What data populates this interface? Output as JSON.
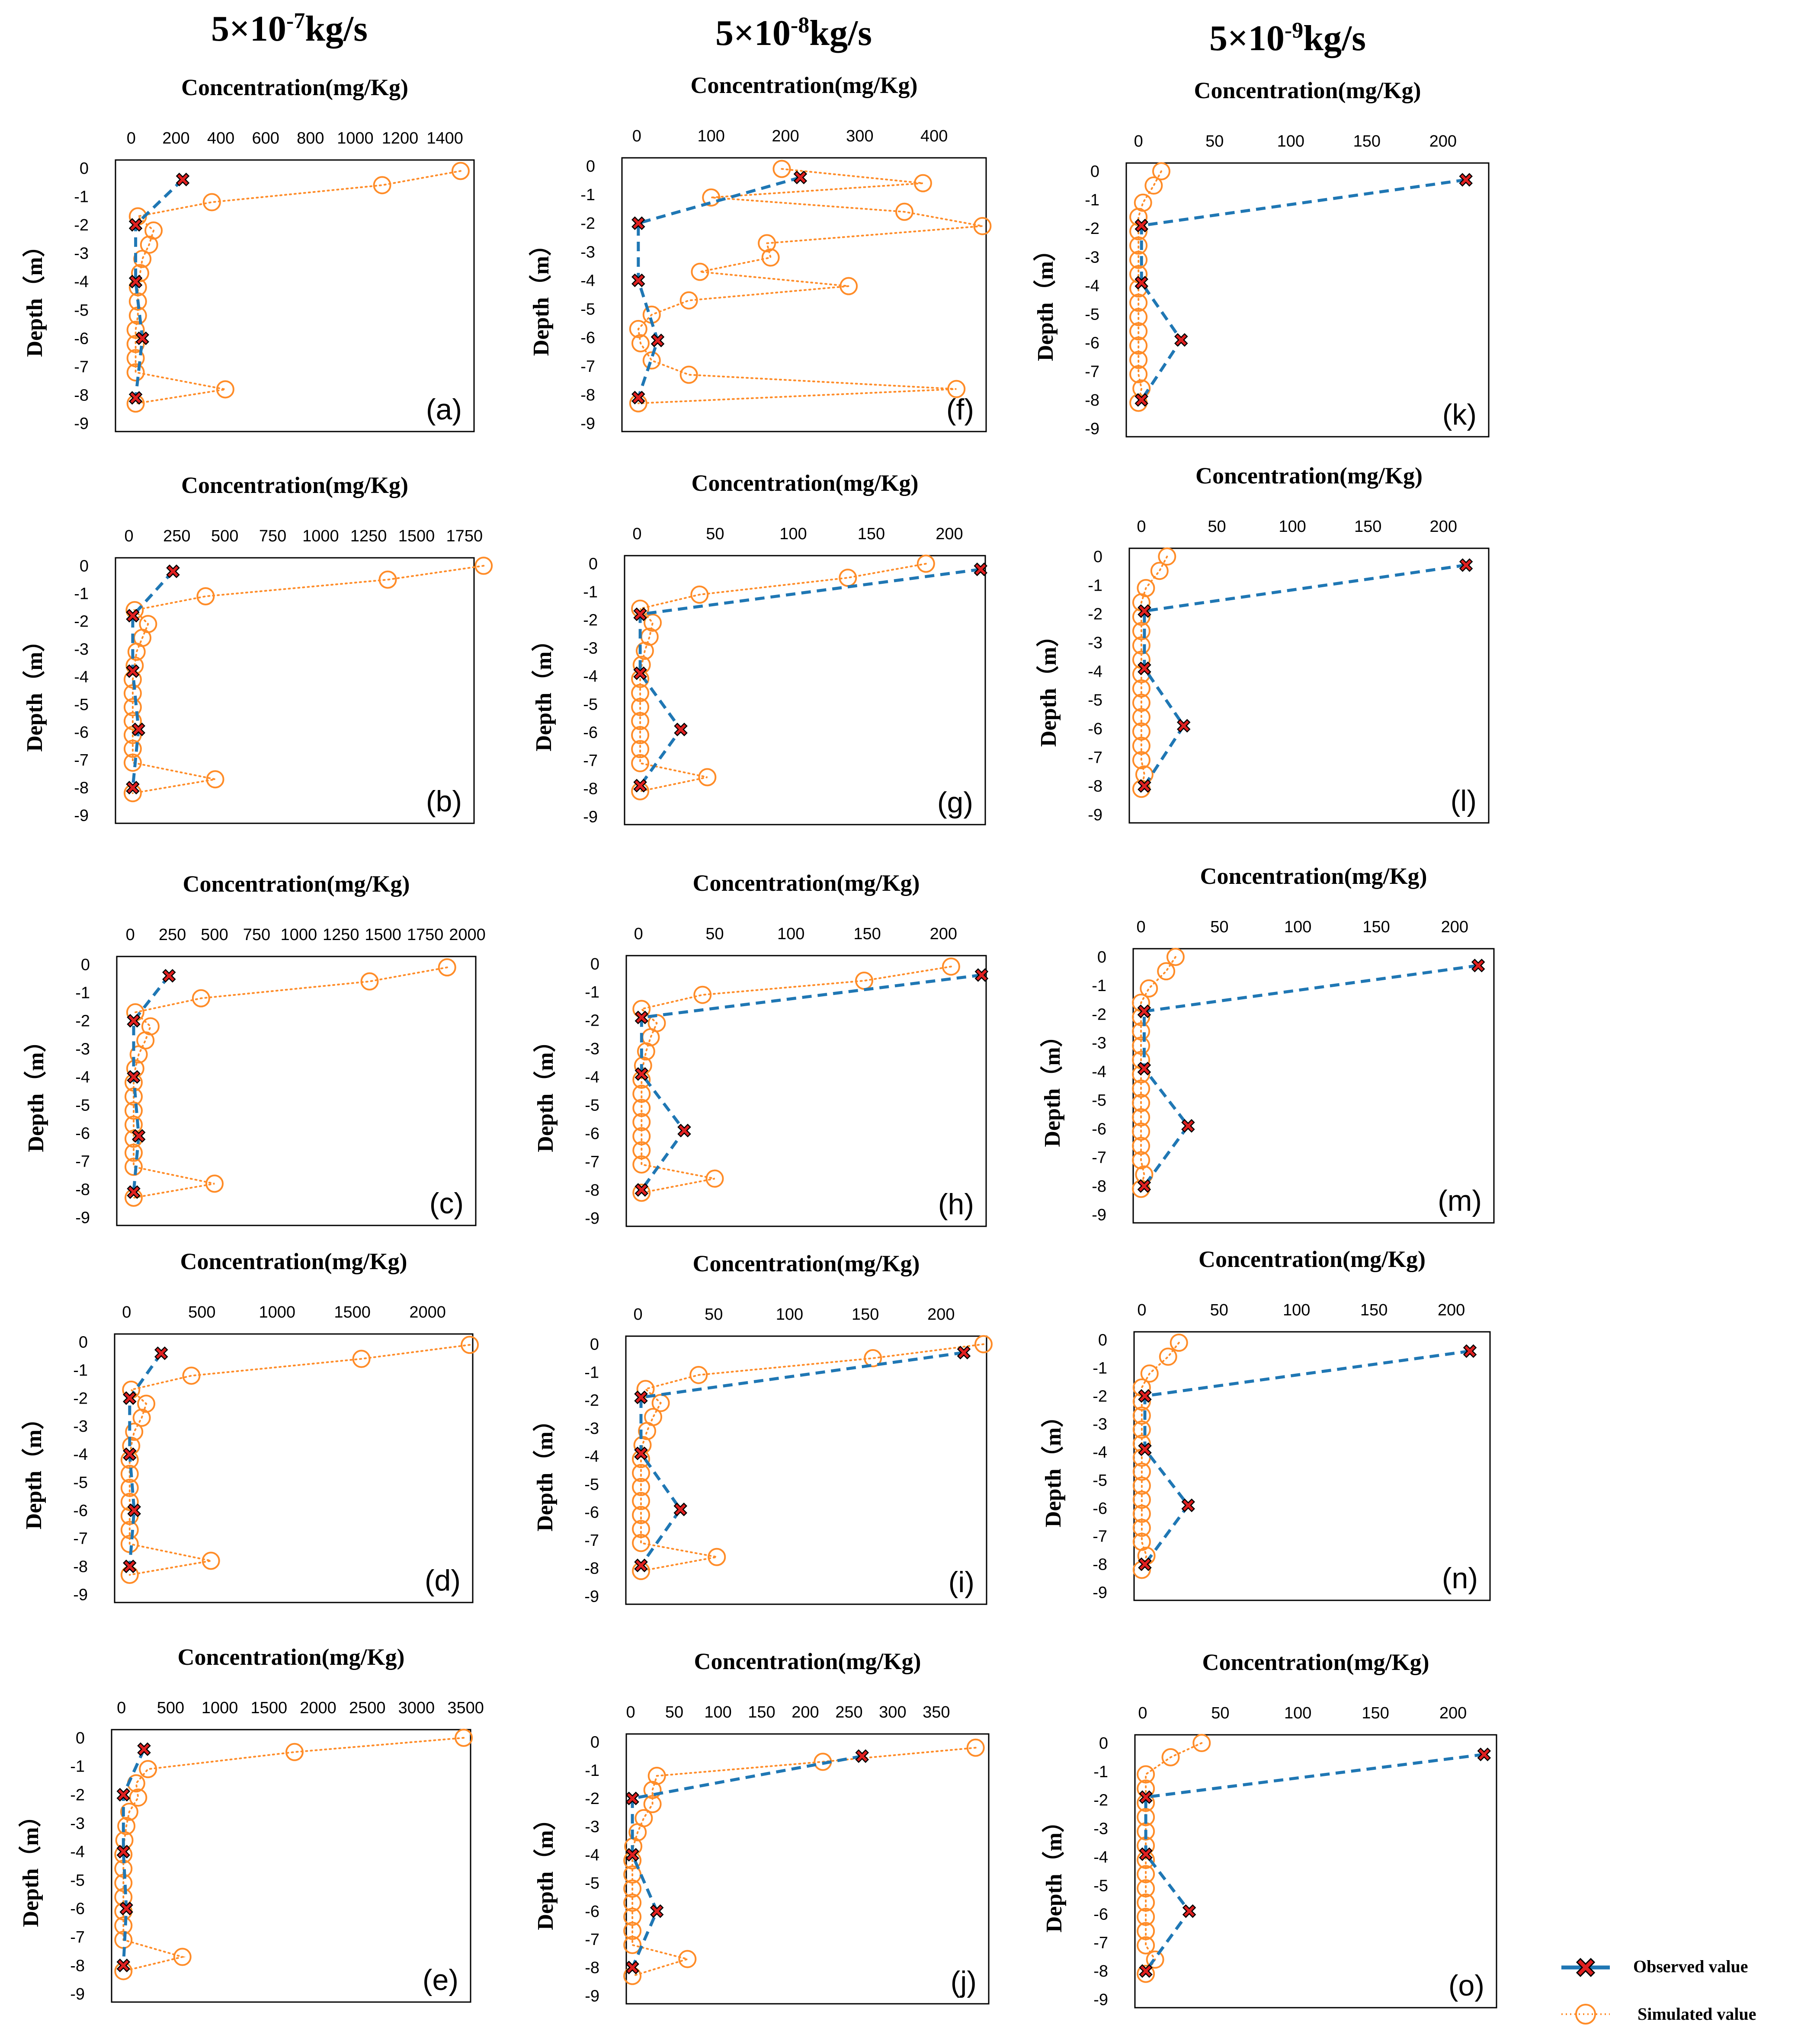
{
  "column_titles": [
    {
      "base": "5×10",
      "exp": "-7",
      "unit": "kg/s"
    },
    {
      "base": "5×10",
      "exp": "-8",
      "unit": "kg/s"
    },
    {
      "base": "5×10",
      "exp": "-9",
      "unit": "kg/s"
    }
  ],
  "legend": {
    "observed": "Observed value",
    "simulated": "Simulated value"
  },
  "colors": {
    "observed_line": "#1f77b4",
    "observed_marker": "#e02020",
    "simulated": "#ff8c28"
  },
  "chart_data": [
    {
      "type": "line",
      "panel_label": "(a)",
      "title": "Concentration(mg/Kg)",
      "ylabel": "Depth（m）",
      "xlim": [
        -70,
        1530
      ],
      "xticks": [
        0,
        200,
        400,
        600,
        800,
        1000,
        1200,
        1400
      ],
      "ylim": [
        -9,
        0
      ],
      "yticks": [
        0,
        -1,
        -2,
        -3,
        -4,
        -5,
        -6,
        -7,
        -8,
        -9
      ],
      "observed": {
        "depth": [
          -0.4,
          -2,
          -4,
          -6,
          -8.1
        ],
        "conc": [
          230,
          20,
          20,
          50,
          20
        ]
      },
      "simulated": {
        "depth": [
          -0.1,
          -0.6,
          -1.2,
          -1.7,
          -2.2,
          -2.7,
          -3.2,
          -3.7,
          -4.2,
          -4.7,
          -5.2,
          -5.7,
          -6.2,
          -6.7,
          -7.2,
          -7.8,
          -8.3
        ],
        "conc": [
          1470,
          1120,
          360,
          30,
          100,
          80,
          50,
          40,
          30,
          30,
          30,
          20,
          20,
          20,
          20,
          420,
          20
        ]
      }
    },
    {
      "type": "line",
      "panel_label": "(b)",
      "title": "Concentration(mg/Kg)",
      "ylabel": "Depth（m）",
      "xlim": [
        -70,
        1800
      ],
      "xticks": [
        0,
        250,
        500,
        750,
        1000,
        1250,
        1500,
        1750
      ],
      "ylim": [
        -9,
        0
      ],
      "yticks": [
        0,
        -1,
        -2,
        -3,
        -4,
        -5,
        -6,
        -7,
        -8,
        -9
      ],
      "observed": {
        "depth": [
          -0.2,
          -1.8,
          -3.8,
          -5.9,
          -8.0
        ],
        "conc": [
          230,
          20,
          20,
          50,
          20
        ]
      },
      "simulated": {
        "depth": [
          0,
          -0.5,
          -1.1,
          -1.6,
          -2.1,
          -2.6,
          -3.1,
          -3.6,
          -4.1,
          -4.6,
          -5.1,
          -5.6,
          -6.1,
          -6.6,
          -7.1,
          -7.7,
          -8.2
        ],
        "conc": [
          1850,
          1350,
          400,
          30,
          100,
          70,
          40,
          30,
          20,
          20,
          20,
          20,
          20,
          20,
          20,
          450,
          20
        ]
      }
    },
    {
      "type": "line",
      "panel_label": "(c)",
      "title": "Concentration(mg/Kg)",
      "ylabel": "Depth（m）",
      "xlim": [
        -80,
        2050
      ],
      "xticks": [
        0,
        250,
        500,
        750,
        1000,
        1250,
        1500,
        1750,
        2000
      ],
      "ylim": [
        -9,
        0
      ],
      "yticks": [
        0,
        -1,
        -2,
        -3,
        -4,
        -5,
        -6,
        -7,
        -8,
        -9
      ],
      "observed": {
        "depth": [
          -0.4,
          -2,
          -4,
          -6.1,
          -8.1
        ],
        "conc": [
          230,
          20,
          20,
          50,
          20
        ]
      },
      "simulated": {
        "depth": [
          -0.1,
          -0.6,
          -1.2,
          -1.7,
          -2.2,
          -2.7,
          -3.2,
          -3.7,
          -4.2,
          -4.7,
          -5.2,
          -5.7,
          -6.2,
          -6.7,
          -7.2,
          -7.8,
          -8.3
        ],
        "conc": [
          1880,
          1420,
          420,
          30,
          120,
          90,
          50,
          30,
          20,
          20,
          20,
          20,
          20,
          20,
          20,
          500,
          20
        ]
      }
    },
    {
      "type": "line",
      "panel_label": "(d)",
      "title": "Concentration(mg/Kg)",
      "ylabel": "Depth（m）",
      "xlim": [
        -80,
        2300
      ],
      "xticks": [
        0,
        500,
        1000,
        1500,
        2000
      ],
      "ylim": [
        -9,
        0
      ],
      "yticks": [
        0,
        -1,
        -2,
        -3,
        -4,
        -5,
        -6,
        -7,
        -8,
        -9
      ],
      "observed": {
        "depth": [
          -0.4,
          -2,
          -4,
          -6,
          -8
        ],
        "conc": [
          230,
          20,
          20,
          50,
          20
        ]
      },
      "simulated": {
        "depth": [
          -0.1,
          -0.6,
          -1.2,
          -1.7,
          -2.2,
          -2.7,
          -3.2,
          -3.7,
          -4.2,
          -4.7,
          -5.2,
          -5.7,
          -6.2,
          -6.7,
          -7.2,
          -7.8,
          -8.3
        ],
        "conc": [
          2280,
          1560,
          430,
          30,
          130,
          100,
          50,
          30,
          20,
          20,
          20,
          20,
          20,
          20,
          20,
          560,
          20
        ]
      }
    },
    {
      "type": "line",
      "panel_label": "(e)",
      "title": "Concentration(mg/Kg)",
      "ylabel": "Depth（m）",
      "xlim": [
        -100,
        3550
      ],
      "xticks": [
        0,
        500,
        1000,
        1500,
        2000,
        2500,
        3000,
        3500
      ],
      "ylim": [
        -9,
        0
      ],
      "yticks": [
        0,
        -1,
        -2,
        -3,
        -4,
        -5,
        -6,
        -7,
        -8,
        -9
      ],
      "observed": {
        "depth": [
          -0.4,
          -2,
          -4,
          -6,
          -8
        ],
        "conc": [
          230,
          20,
          20,
          50,
          20
        ]
      },
      "simulated": {
        "depth": [
          0,
          -0.5,
          -1.1,
          -1.6,
          -2.1,
          -2.6,
          -3.1,
          -3.6,
          -4.1,
          -4.6,
          -5.1,
          -5.6,
          -6.1,
          -6.6,
          -7.1,
          -7.7,
          -8.2
        ],
        "conc": [
          3480,
          1760,
          270,
          150,
          170,
          80,
          50,
          30,
          20,
          20,
          20,
          20,
          20,
          20,
          20,
          620,
          20
        ]
      }
    },
    {
      "type": "line",
      "panel_label": "(f)",
      "title": "Concentration(mg/Kg)",
      "ylabel": "Depth（m）",
      "xlim": [
        -20,
        470
      ],
      "xticks": [
        0,
        100,
        200,
        300,
        400
      ],
      "ylim": [
        -9,
        0
      ],
      "yticks": [
        0,
        -1,
        -2,
        -3,
        -4,
        -5,
        -6,
        -7,
        -8,
        -9
      ],
      "observed": {
        "depth": [
          -0.4,
          -2,
          -4,
          -6.1,
          -8.1
        ],
        "conc": [
          220,
          2,
          2,
          28,
          2
        ]
      },
      "simulated": {
        "depth": [
          -0.1,
          -0.6,
          -1.1,
          -1.6,
          -2.1,
          -2.7,
          -3.2,
          -3.7,
          -4.2,
          -4.7,
          -5.2,
          -5.7,
          -6.2,
          -6.8,
          -7.3,
          -7.8,
          -8.3
        ],
        "conc": [
          195,
          385,
          100,
          360,
          465,
          175,
          180,
          85,
          285,
          70,
          20,
          2,
          5,
          20,
          70,
          430,
          2
        ]
      }
    },
    {
      "type": "line",
      "panel_label": "(g)",
      "title": "Concentration(mg/Kg)",
      "ylabel": "Depth（m）",
      "xlim": [
        -8,
        223
      ],
      "xticks": [
        0,
        50,
        100,
        150,
        200
      ],
      "ylim": [
        -9,
        0
      ],
      "yticks": [
        0,
        -1,
        -2,
        -3,
        -4,
        -5,
        -6,
        -7,
        -8,
        -9
      ],
      "observed": {
        "depth": [
          -0.2,
          -1.8,
          -3.9,
          -5.9,
          -7.9
        ],
        "conc": [
          220,
          2,
          2,
          28,
          2
        ]
      },
      "simulated": {
        "depth": [
          0,
          -0.5,
          -1.1,
          -1.6,
          -2.1,
          -2.6,
          -3.1,
          -3.6,
          -4.1,
          -4.6,
          -5.1,
          -5.6,
          -6.1,
          -6.6,
          -7.1,
          -7.6,
          -8.1
        ],
        "conc": [
          185,
          135,
          40,
          2,
          10,
          8,
          5,
          3,
          2,
          2,
          2,
          2,
          2,
          2,
          2,
          45,
          2
        ]
      }
    },
    {
      "type": "line",
      "panel_label": "(h)",
      "title": "Concentration(mg/Kg)",
      "ylabel": "Depth（m）",
      "xlim": [
        -8,
        228
      ],
      "xticks": [
        0,
        50,
        100,
        150,
        200
      ],
      "ylim": [
        -9,
        0
      ],
      "yticks": [
        0,
        -1,
        -2,
        -3,
        -4,
        -5,
        -6,
        -7,
        -8,
        -9
      ],
      "observed": {
        "depth": [
          -0.4,
          -1.9,
          -3.9,
          -5.9,
          -8.0
        ],
        "conc": [
          225,
          2,
          2,
          30,
          2
        ]
      },
      "simulated": {
        "depth": [
          -0.1,
          -0.6,
          -1.1,
          -1.6,
          -2.1,
          -2.6,
          -3.1,
          -3.6,
          -4.1,
          -4.6,
          -5.1,
          -5.6,
          -6.1,
          -6.6,
          -7.1,
          -7.6,
          -8.1
        ],
        "conc": [
          205,
          148,
          42,
          2,
          12,
          8,
          5,
          3,
          2,
          2,
          2,
          2,
          2,
          2,
          2,
          50,
          2
        ]
      }
    },
    {
      "type": "line",
      "panel_label": "(i)",
      "title": "Concentration(mg/Kg)",
      "ylabel": "Depth（m）",
      "xlim": [
        -8,
        230
      ],
      "xticks": [
        0,
        50,
        100,
        150,
        200
      ],
      "ylim": [
        -9,
        0
      ],
      "yticks": [
        0,
        -1,
        -2,
        -3,
        -4,
        -5,
        -6,
        -7,
        -8,
        -9
      ],
      "observed": {
        "depth": [
          -0.3,
          -1.9,
          -3.9,
          -5.9,
          -7.9
        ],
        "conc": [
          215,
          2,
          2,
          28,
          2
        ]
      },
      "simulated": {
        "depth": [
          0,
          -0.5,
          -1.1,
          -1.6,
          -2.1,
          -2.6,
          -3.1,
          -3.6,
          -4.1,
          -4.6,
          -5.1,
          -5.6,
          -6.1,
          -6.6,
          -7.1,
          -7.6,
          -8.1
        ],
        "conc": [
          228,
          155,
          40,
          5,
          15,
          10,
          6,
          3,
          2,
          2,
          2,
          2,
          2,
          2,
          2,
          52,
          2
        ]
      }
    },
    {
      "type": "line",
      "panel_label": "(j)",
      "title": "Concentration(mg/Kg)",
      "ylabel": "Depth（m）",
      "xlim": [
        -5,
        410
      ],
      "xticks": [
        0,
        50,
        100,
        150,
        200,
        250,
        300,
        350
      ],
      "ylim": [
        -9,
        0
      ],
      "yticks": [
        0,
        -1,
        -2,
        -3,
        -4,
        -5,
        -6,
        -7,
        -8,
        -9
      ],
      "observed": {
        "depth": [
          -0.5,
          -2,
          -4,
          -6,
          -8
        ],
        "conc": [
          265,
          2,
          2,
          30,
          2
        ]
      },
      "simulated": {
        "depth": [
          -0.2,
          -0.7,
          -1.2,
          -1.7,
          -2.2,
          -2.7,
          -3.2,
          -3.7,
          -4.2,
          -4.7,
          -5.2,
          -5.7,
          -6.2,
          -6.7,
          -7.2,
          -7.7,
          -8.3
        ],
        "conc": [
          395,
          220,
          30,
          25,
          25,
          15,
          8,
          3,
          2,
          2,
          2,
          2,
          2,
          2,
          2,
          65,
          2
        ]
      }
    },
    {
      "type": "line",
      "panel_label": "(k)",
      "title": "Concentration(mg/Kg)",
      "ylabel": "Depth（m）",
      "xlim": [
        -8,
        230
      ],
      "xticks": [
        0,
        50,
        100,
        150,
        200
      ],
      "ylim": [
        -9,
        0
      ],
      "yticks": [
        0,
        -1,
        -2,
        -3,
        -4,
        -5,
        -6,
        -7,
        -8,
        -9
      ],
      "observed": {
        "depth": [
          -0.3,
          -1.9,
          -3.9,
          -5.9,
          -8.0
        ],
        "conc": [
          215,
          2,
          2,
          28,
          2
        ]
      },
      "simulated": {
        "depth": [
          0,
          -0.5,
          -1.1,
          -1.6,
          -2.1,
          -2.6,
          -3.1,
          -3.6,
          -4.1,
          -4.6,
          -5.1,
          -5.6,
          -6.1,
          -6.6,
          -7.1,
          -7.6,
          -8.1
        ],
        "conc": [
          15,
          10,
          3,
          0,
          0,
          0,
          0,
          0,
          0,
          0,
          0,
          0,
          0,
          0,
          0,
          2,
          0
        ]
      }
    },
    {
      "type": "line",
      "panel_label": "(l)",
      "title": "Concentration(mg/Kg)",
      "ylabel": "Depth（m）",
      "xlim": [
        -8,
        230
      ],
      "xticks": [
        0,
        50,
        100,
        150,
        200
      ],
      "ylim": [
        -9,
        0
      ],
      "yticks": [
        0,
        -1,
        -2,
        -3,
        -4,
        -5,
        -6,
        -7,
        -8,
        -9
      ],
      "observed": {
        "depth": [
          -0.3,
          -1.9,
          -3.9,
          -5.9,
          -8.0
        ],
        "conc": [
          215,
          2,
          2,
          28,
          2
        ]
      },
      "simulated": {
        "depth": [
          0,
          -0.5,
          -1.1,
          -1.6,
          -2.1,
          -2.6,
          -3.1,
          -3.6,
          -4.1,
          -4.6,
          -5.1,
          -5.6,
          -6.1,
          -6.6,
          -7.1,
          -7.6,
          -8.1
        ],
        "conc": [
          17,
          12,
          3,
          0,
          0,
          0,
          0,
          0,
          0,
          0,
          0,
          0,
          0,
          0,
          0,
          2,
          0
        ]
      }
    },
    {
      "type": "line",
      "panel_label": "(m)",
      "title": "Concentration(mg/Kg)",
      "ylabel": "Depth（m）",
      "xlim": [
        -5,
        225
      ],
      "xticks": [
        0,
        50,
        100,
        150,
        200
      ],
      "ylim": [
        -9,
        0
      ],
      "yticks": [
        0,
        -1,
        -2,
        -3,
        -4,
        -5,
        -6,
        -7,
        -8,
        -9
      ],
      "observed": {
        "depth": [
          -0.3,
          -1.9,
          -3.9,
          -5.9,
          -8.0
        ],
        "conc": [
          215,
          2,
          2,
          30,
          2
        ]
      },
      "simulated": {
        "depth": [
          0,
          -0.5,
          -1.1,
          -1.6,
          -2.1,
          -2.6,
          -3.1,
          -3.6,
          -4.1,
          -4.6,
          -5.1,
          -5.6,
          -6.1,
          -6.6,
          -7.1,
          -7.6,
          -8.1
        ],
        "conc": [
          22,
          16,
          5,
          0,
          0,
          0,
          0,
          0,
          0,
          0,
          0,
          0,
          0,
          0,
          0,
          2,
          0
        ]
      }
    },
    {
      "type": "line",
      "panel_label": "(n)",
      "title": "Concentration(mg/Kg)",
      "ylabel": "Depth（m）",
      "xlim": [
        -5,
        225
      ],
      "xticks": [
        0,
        50,
        100,
        150,
        200
      ],
      "ylim": [
        -9,
        0
      ],
      "yticks": [
        0,
        -1,
        -2,
        -3,
        -4,
        -5,
        -6,
        -7,
        -8,
        -9
      ],
      "observed": {
        "depth": [
          -0.4,
          -2,
          -3.9,
          -5.9,
          -8.0
        ],
        "conc": [
          212,
          2,
          2,
          30,
          2
        ]
      },
      "simulated": {
        "depth": [
          -0.1,
          -0.6,
          -1.2,
          -1.7,
          -2.2,
          -2.7,
          -3.2,
          -3.7,
          -4.2,
          -4.7,
          -5.2,
          -5.7,
          -6.2,
          -6.7,
          -7.2,
          -7.7,
          -8.2
        ],
        "conc": [
          24,
          17,
          5,
          0,
          0,
          0,
          0,
          0,
          0,
          0,
          0,
          0,
          0,
          0,
          0,
          3,
          0
        ]
      }
    },
    {
      "type": "line",
      "panel_label": "(o)",
      "title": "Concentration(mg/Kg)",
      "ylabel": "Depth（m）",
      "xlim": [
        -5,
        228
      ],
      "xticks": [
        0,
        50,
        100,
        150,
        200
      ],
      "ylim": [
        -9,
        0
      ],
      "yticks": [
        0,
        -1,
        -2,
        -3,
        -4,
        -5,
        -6,
        -7,
        -8,
        -9
      ],
      "observed": {
        "depth": [
          -0.4,
          -1.9,
          -3.9,
          -5.9,
          -8.0
        ],
        "conc": [
          220,
          2,
          2,
          30,
          2
        ]
      },
      "simulated": {
        "depth": [
          0,
          -0.5,
          -1.1,
          -1.6,
          -2.1,
          -2.6,
          -3.1,
          -3.6,
          -4.1,
          -4.6,
          -5.1,
          -5.6,
          -6.1,
          -6.6,
          -7.1,
          -7.6,
          -8.1
        ],
        "conc": [
          38,
          18,
          2,
          2,
          2,
          2,
          2,
          2,
          2,
          2,
          2,
          2,
          2,
          2,
          2,
          8,
          2
        ]
      }
    }
  ]
}
